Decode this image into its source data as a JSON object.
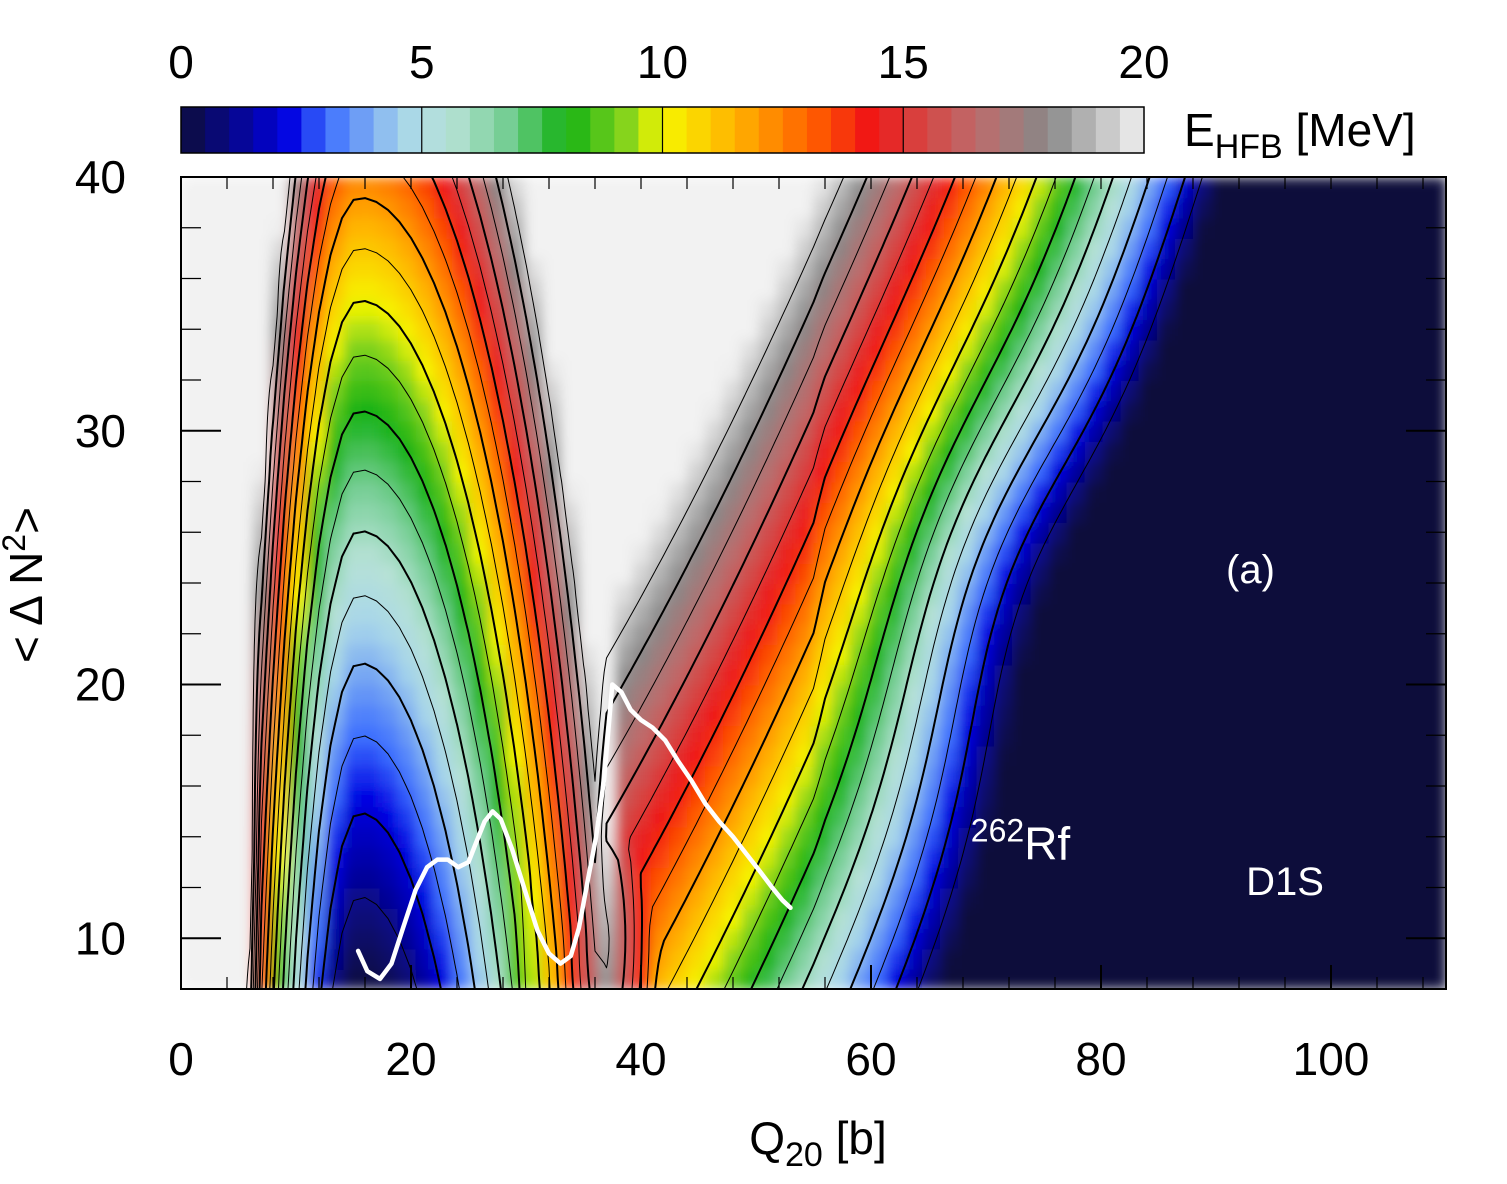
{
  "chart_data": {
    "type": "heatmap",
    "title": "",
    "xlabel": {
      "main": "Q",
      "sub": "20",
      "unit": " [b]"
    },
    "ylabel": {
      "main": "< Δ N",
      "sup": "2",
      "end": ">"
    },
    "xlim": [
      0,
      110
    ],
    "ylim": [
      8,
      40
    ],
    "xticks": [
      0,
      20,
      40,
      60,
      80,
      100
    ],
    "yticks": [
      10,
      20,
      30,
      40
    ],
    "x_minor_step": 4,
    "y_minor_step": 2,
    "colorbar": {
      "label": {
        "main": "E",
        "sub": "HFB",
        "unit": " [MeV]"
      },
      "range": [
        0,
        20
      ],
      "ticks": [
        0,
        5,
        10,
        15,
        20
      ],
      "steps": 40,
      "stops": [
        {
          "v": 0,
          "color": "#0d0d3a"
        },
        {
          "v": 2.2,
          "color": "#0000e0"
        },
        {
          "v": 3.0,
          "color": "#3a6cff"
        },
        {
          "v": 4.6,
          "color": "#a8d6ea"
        },
        {
          "v": 5.6,
          "color": "#b7e2d6"
        },
        {
          "v": 6.8,
          "color": "#73cd92"
        },
        {
          "v": 8.0,
          "color": "#14b114"
        },
        {
          "v": 9.2,
          "color": "#7fd21e"
        },
        {
          "v": 10.0,
          "color": "#f6f600"
        },
        {
          "v": 11.5,
          "color": "#ffb300"
        },
        {
          "v": 13.2,
          "color": "#ff5a00"
        },
        {
          "v": 14.3,
          "color": "#f01515"
        },
        {
          "v": 15.3,
          "color": "#d8413f"
        },
        {
          "v": 16.5,
          "color": "#be6b6b"
        },
        {
          "v": 18.0,
          "color": "#888888"
        },
        {
          "v": 20.0,
          "color": "#f2f2f2"
        }
      ]
    },
    "series": [
      {
        "name": "least-action path",
        "color": "#ffffff",
        "points": [
          [
            15.4,
            9.5
          ],
          [
            16.2,
            8.7
          ],
          [
            17.3,
            8.4
          ],
          [
            18.3,
            9.0
          ],
          [
            19.3,
            10.4
          ],
          [
            20.4,
            11.9
          ],
          [
            21.4,
            12.8
          ],
          [
            22.3,
            13.1
          ],
          [
            23.2,
            13.1
          ],
          [
            24.1,
            12.8
          ],
          [
            25.0,
            13.0
          ],
          [
            25.6,
            13.7
          ],
          [
            26.4,
            14.6
          ],
          [
            27.1,
            15.0
          ],
          [
            27.8,
            14.7
          ],
          [
            28.8,
            13.5
          ],
          [
            29.9,
            11.9
          ],
          [
            31.0,
            10.3
          ],
          [
            32.0,
            9.4
          ],
          [
            33.0,
            9.0
          ],
          [
            33.9,
            9.3
          ],
          [
            34.6,
            10.4
          ],
          [
            35.3,
            12.1
          ],
          [
            36.1,
            14.0
          ],
          [
            36.8,
            16.3
          ],
          [
            37.5,
            20.0
          ],
          [
            38.3,
            19.7
          ],
          [
            39.1,
            19.0
          ],
          [
            40.0,
            18.6
          ],
          [
            41.0,
            18.3
          ],
          [
            42.1,
            17.8
          ],
          [
            43.2,
            17.0
          ],
          [
            44.4,
            16.2
          ],
          [
            45.6,
            15.3
          ],
          [
            46.8,
            14.6
          ],
          [
            48.0,
            14.0
          ],
          [
            49.2,
            13.3
          ],
          [
            50.4,
            12.6
          ],
          [
            51.4,
            12.0
          ],
          [
            52.3,
            11.5
          ],
          [
            53.0,
            11.2
          ]
        ]
      }
    ],
    "annotations": [
      {
        "text": "(a)",
        "x": 93,
        "y": 24
      },
      {
        "text": "Rf",
        "sup": "262",
        "x": 73,
        "y": 13.1
      },
      {
        "text": "D1S",
        "x": 96,
        "y": 11.7
      }
    ]
  }
}
